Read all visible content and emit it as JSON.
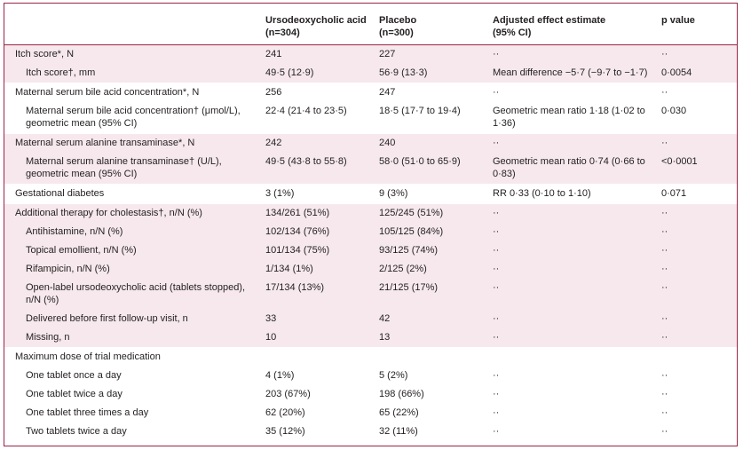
{
  "table": {
    "headers": [
      [
        "Ursodeoxycholic acid",
        "(n=304)"
      ],
      [
        "Placebo",
        "(n=300)"
      ],
      [
        "Adjusted effect estimate",
        "(95% CI)"
      ],
      [
        "p value"
      ]
    ],
    "rows": [
      [
        "Itch score*, N",
        "241",
        "227",
        "··",
        "··"
      ],
      [
        "Itch score†, mm",
        "49·5 (12·9)",
        "56·9 (13·3)",
        "Mean difference −5·7 (−9·7 to −1·7)",
        "0·0054"
      ],
      [
        "Maternal serum bile acid concentration*, N",
        "256",
        "247",
        "··",
        "··"
      ],
      [
        "Maternal serum bile acid concentration† (μmol/L), geometric mean (95% CI)",
        "22·4 (21·4 to 23·5)",
        "18·5 (17·7 to 19·4)",
        "Geometric mean ratio 1·18 (1·02 to 1·36)",
        "0·030"
      ],
      [
        "Maternal serum alanine transaminase*, N",
        "242",
        "240",
        "··",
        "··"
      ],
      [
        "Maternal serum alanine transaminase† (U/L), geometric mean (95% CI)",
        "49·5 (43·8 to 55·8)",
        "58·0 (51·0 to 65·9)",
        "Geometric mean ratio 0·74 (0·66 to 0·83)",
        "<0·0001"
      ],
      [
        "Gestational diabetes",
        "3 (1%)",
        "9 (3%)",
        "RR 0·33 (0·10 to 1·10)",
        "0·071"
      ],
      [
        "Additional therapy for cholestasis†, n/N (%)",
        "134/261 (51%)",
        "125/245 (51%)",
        "··",
        "··"
      ],
      [
        "Antihistamine, n/N (%)",
        "102/134 (76%)",
        "105/125 (84%)",
        "··",
        "··"
      ],
      [
        "Topical emollient, n/N (%)",
        "101/134 (75%)",
        "93/125 (74%)",
        "··",
        "··"
      ],
      [
        "Rifampicin, n/N (%)",
        "1/134 (1%)",
        "2/125 (2%)",
        "··",
        "··"
      ],
      [
        "Open-label ursodeoxycholic acid (tablets stopped), n/N (%)",
        "17/134 (13%)",
        "21/125 (17%)",
        "··",
        "··"
      ],
      [
        "Delivered before first follow-up visit, n",
        "33",
        "42",
        "··",
        "··"
      ],
      [
        "Missing, n",
        "10",
        "13",
        "··",
        "··"
      ],
      [
        "Maximum dose of trial medication"
      ],
      [
        "One tablet once a day",
        "4 (1%)",
        "5 (2%)",
        "··",
        "··"
      ],
      [
        "One tablet twice a day",
        "203 (67%)",
        "198 (66%)",
        "··",
        "··"
      ],
      [
        "One tablet three times a day",
        "62 (20%)",
        "65 (22%)",
        "··",
        "··"
      ],
      [
        "Two tablets twice a day",
        "35 (12%)",
        "32 (11%)",
        "··",
        "··"
      ]
    ]
  }
}
